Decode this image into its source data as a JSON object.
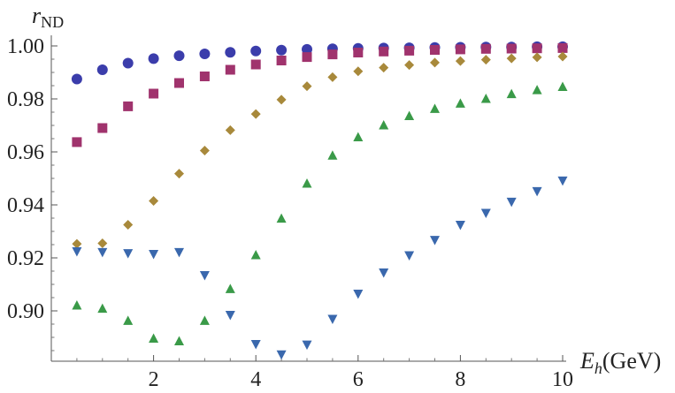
{
  "chart_data": {
    "type": "scatter",
    "title": "",
    "xlabel": "E_h(GeV)",
    "xlabel_main": "E",
    "xlabel_sub": "h",
    "xlabel_unit": "(GeV)",
    "ylabel": "r_ND",
    "ylabel_main": "r",
    "ylabel_sub": "ND",
    "xlim": [
      0,
      10
    ],
    "ylim": [
      0.881,
      1.004
    ],
    "x_ticks": [
      2,
      4,
      6,
      8,
      10
    ],
    "x_tick_labels": [
      "2",
      "4",
      "6",
      "8",
      "10"
    ],
    "y_ticks": [
      0.9,
      0.92,
      0.94,
      0.96,
      0.98,
      1.0
    ],
    "y_tick_labels": [
      "0.90",
      "0.92",
      "0.94",
      "0.96",
      "0.98",
      "1.00"
    ],
    "grid": false,
    "x": [
      0.5,
      1.0,
      1.5,
      2.0,
      2.5,
      3.0,
      3.5,
      4.0,
      4.5,
      5.0,
      5.5,
      6.0,
      6.5,
      7.0,
      7.5,
      8.0,
      8.5,
      9.0,
      9.5,
      10.0
    ],
    "series": [
      {
        "marker": "circle",
        "color": "#3b3dab",
        "values": [
          0.9875,
          0.991,
          0.9935,
          0.9952,
          0.9963,
          0.997,
          0.9976,
          0.9981,
          0.9984,
          0.9987,
          0.9989,
          0.9991,
          0.9992,
          0.9993,
          0.9994,
          0.9995,
          0.9996,
          0.9996,
          0.9997,
          0.9997
        ]
      },
      {
        "marker": "square",
        "color": "#a0336d",
        "values": [
          0.9637,
          0.969,
          0.9772,
          0.982,
          0.986,
          0.9885,
          0.991,
          0.993,
          0.9945,
          0.9958,
          0.9968,
          0.9975,
          0.9979,
          0.9982,
          0.9985,
          0.9987,
          0.9989,
          0.999,
          0.9991,
          0.9992
        ]
      },
      {
        "marker": "diamond",
        "color": "#a8893b",
        "values": [
          0.9253,
          0.9255,
          0.9325,
          0.9415,
          0.9518,
          0.9605,
          0.9682,
          0.9743,
          0.9797,
          0.9848,
          0.9882,
          0.9904,
          0.9918,
          0.9928,
          0.9937,
          0.9943,
          0.9948,
          0.9953,
          0.9957,
          0.996
        ]
      },
      {
        "marker": "triangle-up",
        "color": "#3a9a48",
        "values": [
          0.902,
          0.9008,
          0.8962,
          0.8895,
          0.8885,
          0.8962,
          0.9082,
          0.921,
          0.9348,
          0.948,
          0.9586,
          0.9655,
          0.97,
          0.9735,
          0.9762,
          0.9782,
          0.98,
          0.9818,
          0.9833,
          0.9845
        ]
      },
      {
        "marker": "triangle-down",
        "color": "#3a68ad",
        "values": [
          0.9225,
          0.9222,
          0.9218,
          0.9215,
          0.9222,
          0.9135,
          0.8985,
          0.8875,
          0.8836,
          0.8873,
          0.897,
          0.9065,
          0.9145,
          0.921,
          0.9268,
          0.9325,
          0.937,
          0.9412,
          0.9452,
          0.9492
        ]
      }
    ]
  }
}
